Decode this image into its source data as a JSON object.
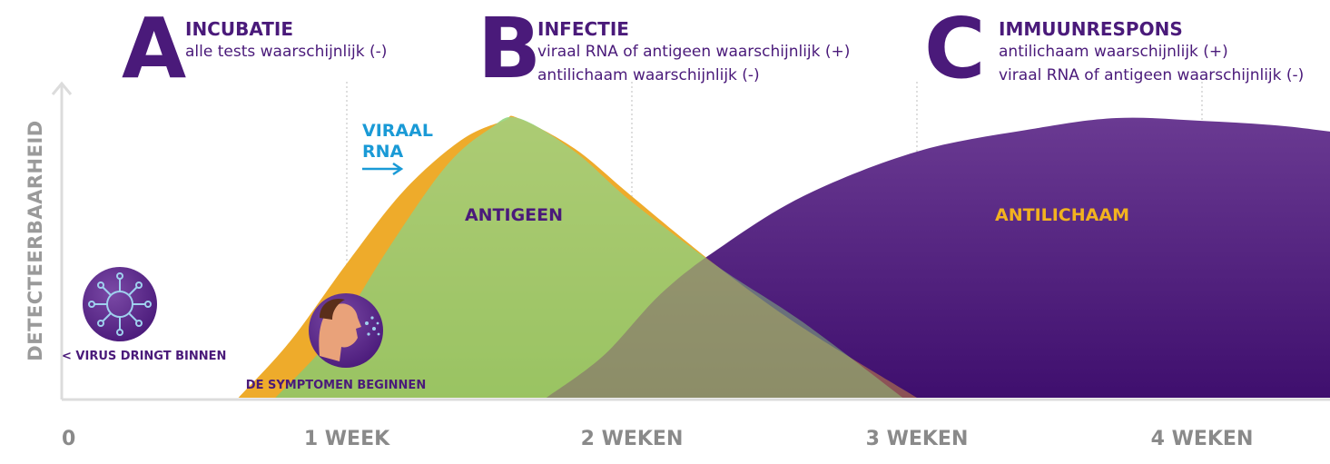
{
  "phases": [
    {
      "letter": "A",
      "title": "INCUBATIE",
      "lines": [
        "alle tests waarschijnlijk (-)"
      ]
    },
    {
      "letter": "B",
      "title": "INFECTIE",
      "lines": [
        "viraal RNA of antigeen waarschijnlijk (+)",
        "antilichaam waarschijnlijk (-)"
      ]
    },
    {
      "letter": "C",
      "title": "IMMUUNRESPONS",
      "lines": [
        "antilichaam waarschijnlijk (+)",
        "viraal RNA of antigeen waarschijnlijk (-)"
      ]
    }
  ],
  "chart_data": {
    "type": "area",
    "title": "",
    "ylabel": "DETECTEERBAARHEID",
    "xlabel": "",
    "x_unit": "weken",
    "xlim": [
      0,
      4.6
    ],
    "ylim": [
      0,
      1
    ],
    "x_ticks": [
      {
        "value": 0,
        "label": "0"
      },
      {
        "value": 1,
        "label": "1 WEEK"
      },
      {
        "value": 2,
        "label": "2 WEKEN"
      },
      {
        "value": 3,
        "label": "3 WEKEN"
      },
      {
        "value": 4,
        "label": "4 WEKEN"
      }
    ],
    "grid": "vertical dotted lines at each week",
    "series": [
      {
        "name": "VIRAAL RNA",
        "color": "#f2b21f",
        "points": [
          [
            0.62,
            0
          ],
          [
            0.8,
            0.2
          ],
          [
            1.0,
            0.48
          ],
          [
            1.2,
            0.74
          ],
          [
            1.4,
            0.92
          ],
          [
            1.55,
            0.99
          ],
          [
            1.6,
            1.0
          ],
          [
            1.8,
            0.89
          ],
          [
            2.0,
            0.72
          ],
          [
            2.3,
            0.47
          ],
          [
            2.6,
            0.25
          ],
          [
            3.0,
            0
          ]
        ]
      },
      {
        "name": "ANTIGEEN",
        "color": "#7dcc6e",
        "points": [
          [
            0.75,
            0
          ],
          [
            0.95,
            0.22
          ],
          [
            1.15,
            0.54
          ],
          [
            1.35,
            0.83
          ],
          [
            1.5,
            0.96
          ],
          [
            1.6,
            1.0
          ],
          [
            1.8,
            0.88
          ],
          [
            2.0,
            0.7
          ],
          [
            2.3,
            0.47
          ],
          [
            2.6,
            0.27
          ],
          [
            2.95,
            0
          ]
        ]
      },
      {
        "name": "ANTILICHAAM",
        "color": "#4c1a79",
        "points": [
          [
            1.7,
            0
          ],
          [
            1.9,
            0.15
          ],
          [
            2.1,
            0.37
          ],
          [
            2.3,
            0.53
          ],
          [
            2.6,
            0.72
          ],
          [
            3.0,
            0.88
          ],
          [
            3.4,
            0.96
          ],
          [
            3.7,
            1.0
          ],
          [
            4.0,
            0.99
          ],
          [
            4.3,
            0.97
          ],
          [
            4.6,
            0.93
          ]
        ]
      }
    ],
    "series_labels": [
      {
        "text": "VIRAAL",
        "color": "#1a9ad6"
      },
      {
        "text": "RNA",
        "color": "#1a9ad6"
      },
      {
        "text": "ANTIGEEN",
        "color": "#4a1a7a"
      },
      {
        "text": "ANTILICHAAM",
        "color": "#f2b21f"
      }
    ],
    "annotations": [
      {
        "text": "< VIRUS DRINGT BINNEN",
        "x": 0,
        "icon": "virus-icon"
      },
      {
        "text": "DE SYMPTOMEN BEGINNEN",
        "x": 1.0,
        "icon": "coughing-person-icon"
      }
    ]
  }
}
